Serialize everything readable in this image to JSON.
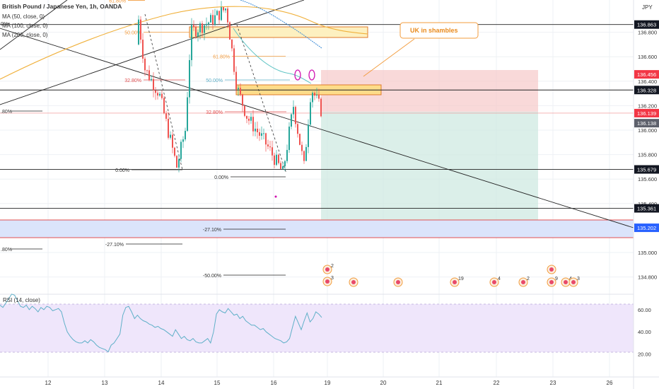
{
  "header": {
    "symbol_title": "British Pound / Japanese Yen, 1h, OANDA",
    "ma50": "MA (50, close, 0)",
    "ma100": "MA (100, close, 0)",
    "ma200": "MA (200, close, 0)",
    "currency": "JPY"
  },
  "rsi": {
    "label": "RSI (14, close)",
    "ticks": [
      "60.00",
      "40.00",
      "20.00"
    ]
  },
  "chart_data": {
    "type": "candlestick",
    "title": "British Pound / Japanese Yen, 1h, OANDA",
    "y_axis_ticks": [
      136.8,
      136.6,
      136.4,
      136.2,
      136.0,
      135.8,
      135.6,
      135.4,
      135.0,
      134.8
    ],
    "y_range": [
      134.7,
      137.0
    ],
    "x_ticks": [
      "12",
      "13",
      "14",
      "15",
      "16",
      "19",
      "20",
      "21",
      "22",
      "23",
      "26"
    ],
    "price_badges": [
      {
        "value": "136.863",
        "style": "dark"
      },
      {
        "value": "136.456",
        "style": "red"
      },
      {
        "value": "136.328",
        "style": "dark"
      },
      {
        "value": "136.139",
        "style": "red"
      },
      {
        "value": "136.138",
        "style": "gray"
      },
      {
        "value": "135.679",
        "style": "dark"
      },
      {
        "value": "135.361",
        "style": "dark"
      },
      {
        "value": "135.202",
        "style": "blue"
      }
    ],
    "fib_labels": [
      "61.80%",
      "50.00%",
      "61.80%",
      "32.80%",
      "50.00%",
      "32.80%",
      "0.00%",
      "0.00%",
      "-27.10%",
      "-27.10%",
      "-50.00%",
      ".80%",
      ".80%",
      "0%"
    ],
    "annotation": "UK in shambles",
    "events": [
      "2",
      "3",
      "19",
      "4",
      "2",
      "9",
      "4",
      "3"
    ],
    "position": {
      "type": "short",
      "entry": 136.139,
      "stop": 136.456,
      "target": 135.202
    },
    "rsi_values": [
      64,
      62,
      66,
      70,
      74,
      73,
      68,
      63,
      62,
      64,
      60,
      63,
      61,
      58,
      62,
      60,
      63,
      62,
      59,
      60,
      61,
      58,
      48,
      40,
      36,
      33,
      31,
      30,
      30,
      32,
      30,
      33,
      31,
      28,
      26,
      25,
      24,
      22,
      28,
      30,
      34,
      38,
      55,
      62,
      63,
      58,
      52,
      55,
      52,
      50,
      49,
      47,
      46,
      44,
      45,
      43,
      42,
      40,
      38,
      36,
      42,
      38,
      34,
      36,
      33,
      32,
      34,
      31,
      30,
      30,
      32,
      34,
      30,
      40,
      56,
      60,
      58,
      57,
      61,
      58,
      55,
      56,
      52,
      54,
      50,
      48,
      46,
      46,
      44,
      42,
      43,
      40,
      38,
      36,
      34,
      33,
      32,
      30,
      31,
      34,
      44,
      54,
      48,
      42,
      50,
      57,
      49,
      52,
      58,
      56,
      53
    ]
  }
}
